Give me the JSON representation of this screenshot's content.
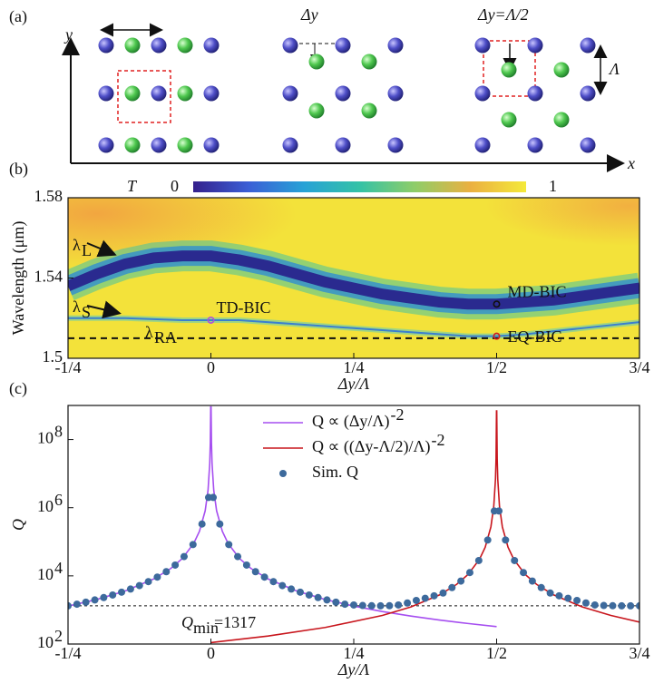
{
  "diagram": {
    "label": "(a)",
    "axis_y": "y",
    "axis_x": "x",
    "shift": "Δy",
    "shift_half": "Δy=Λ/2",
    "period": "Λ"
  },
  "chart_data": [
    {
      "type": "heatmap",
      "panel": "(b)",
      "xlabel": "Δy/Λ",
      "ylabel": "Wavelength (μm)",
      "xlim": [
        -0.25,
        0.75
      ],
      "xticks": [
        {
          "value": -0.25,
          "label": "-1/4"
        },
        0,
        {
          "value": 0.25,
          "label": "1/4"
        },
        {
          "value": 0.5,
          "label": "1/2"
        },
        {
          "value": 0.75,
          "label": "3/4"
        }
      ],
      "ylim": [
        1.5,
        1.58
      ],
      "yticks": [
        {
          "value": 1.5,
          "label": "1.5"
        },
        1.54,
        1.58
      ],
      "colorbar": {
        "label": "T",
        "range": [
          0,
          1
        ],
        "colors": [
          "#35208c",
          "#3b5fd6",
          "#27a2d6",
          "#34c2a6",
          "#8fcd68",
          "#ebb041",
          "#f4e93a"
        ]
      },
      "series": [
        {
          "annotation": "λ",
          "sub": "L",
          "color": "#2a2a8f",
          "x": [
            -0.25,
            -0.2,
            -0.15,
            -0.1,
            -0.05,
            0,
            0.05,
            0.1,
            0.15,
            0.2,
            0.25,
            0.3,
            0.35,
            0.4,
            0.45,
            0.5,
            0.55,
            0.6,
            0.65,
            0.7,
            0.75
          ],
          "values": [
            1.536,
            1.542,
            1.547,
            1.55,
            1.551,
            1.551,
            1.549,
            1.546,
            1.542,
            1.538,
            1.535,
            1.532,
            1.53,
            1.528,
            1.527,
            1.527,
            1.528,
            1.529,
            1.531,
            1.533,
            1.535
          ]
        },
        {
          "annotation": "λ",
          "sub": "S",
          "color": "#3a7fd0",
          "x": [
            -0.25,
            -0.15,
            -0.05,
            0,
            0.05,
            0.15,
            0.25,
            0.35,
            0.45,
            0.5,
            0.55,
            0.65,
            0.75
          ],
          "values": [
            1.52,
            1.52,
            1.519,
            1.519,
            1.519,
            1.517,
            1.515,
            1.513,
            1.511,
            1.511,
            1.512,
            1.515,
            1.518
          ]
        },
        {
          "annotation": "λ",
          "sub": "RA",
          "color": "#111111",
          "x": [
            -0.25,
            0.75
          ],
          "values": [
            1.51,
            1.51
          ]
        }
      ],
      "bics": [
        {
          "label": "TD-BIC",
          "color": "#b04fd8",
          "x": 0,
          "y": 1.519
        },
        {
          "label": "MD-BIC",
          "color": "#111111",
          "x": 0.5,
          "y": 1.527
        },
        {
          "label": "EQ-BIC",
          "color": "#d41c1c",
          "x": 0.5,
          "y": 1.511
        }
      ]
    },
    {
      "type": "line",
      "panel": "(c)",
      "xlabel": "Δy/Λ",
      "ylabel": "Q",
      "log_y": true,
      "xlim": [
        -0.25,
        0.75
      ],
      "xticks": [
        {
          "value": -0.25,
          "label": "-1/4"
        },
        0,
        {
          "value": 0.25,
          "label": "1/4"
        },
        {
          "value": 0.5,
          "label": "1/2"
        },
        {
          "value": 0.75,
          "label": "3/4"
        }
      ],
      "ylim": [
        100,
        1000000000
      ],
      "yticks": [
        {
          "value": 100,
          "label": "10",
          "exponent": "2"
        },
        {
          "value": 10000,
          "label": "10",
          "exponent": "4"
        },
        {
          "value": 1000000,
          "label": "10",
          "exponent": "6"
        },
        {
          "value": 100000000,
          "label": "10",
          "exponent": "8"
        }
      ],
      "reference": {
        "value": 1317,
        "label": "Q",
        "sub": "min",
        "suffix": "=1317"
      },
      "series": [
        {
          "name": "Q ∝ (Δy/Λ)",
          "name_sup": "-2",
          "color": "#a64ff0",
          "style": "line",
          "x": [
            -0.25,
            -0.2,
            -0.15,
            -0.1,
            -0.07,
            -0.05,
            -0.03,
            -0.02,
            -0.01,
            -0.005,
            -0.002,
            -0.001,
            -0.0003,
            0.0003,
            0.001,
            0.002,
            0.005,
            0.01,
            0.02,
            0.03,
            0.05,
            0.07,
            0.1,
            0.15,
            0.2,
            0.25,
            0.3,
            0.35,
            0.4,
            0.45,
            0.5
          ],
          "values": [
            1296,
            2025,
            3600,
            8100,
            16531,
            32400,
            90000,
            202500,
            810000,
            3240000,
            20250000,
            81000000,
            900000000,
            900000000,
            81000000,
            20250000,
            3240000,
            810000,
            202500,
            90000,
            32400,
            16531,
            8100,
            3600,
            2025,
            1296,
            900,
            661,
            506,
            400,
            324
          ]
        },
        {
          "name": "Q ∝ ((Δy-Λ/2)/Λ)",
          "name_sup": "-2",
          "color": "#c8161d",
          "style": "line",
          "x": [
            0,
            0.1,
            0.2,
            0.3,
            0.35,
            0.4,
            0.43,
            0.45,
            0.47,
            0.48,
            0.49,
            0.495,
            0.498,
            0.499,
            0.4998,
            0.5002,
            0.501,
            0.502,
            0.505,
            0.51,
            0.52,
            0.53,
            0.55,
            0.57,
            0.6,
            0.65,
            0.7,
            0.75
          ],
          "values": [
            110,
            172,
            306,
            688,
            1222,
            2750,
            5612,
            11000,
            30556,
            68750,
            275000,
            1100000,
            6875000,
            27500000,
            687500000,
            687500000,
            27500000,
            6875000,
            1100000,
            275000,
            68750,
            30556,
            11000,
            5612,
            2750,
            1222,
            688,
            440
          ]
        },
        {
          "name": "Sim. Q",
          "color": "#3d6a9c",
          "style": "points",
          "x": [
            -0.25,
            -0.2344,
            -0.2188,
            -0.2031,
            -0.1875,
            -0.1719,
            -0.1563,
            -0.1406,
            -0.125,
            -0.1094,
            -0.0938,
            -0.0781,
            -0.0625,
            -0.0469,
            -0.0313,
            -0.0156,
            -0.004,
            0.004,
            0.0156,
            0.0313,
            0.0469,
            0.0625,
            0.0781,
            0.0938,
            0.1094,
            0.125,
            0.1406,
            0.1563,
            0.1719,
            0.1875,
            0.2031,
            0.2188,
            0.2344,
            0.25,
            0.2656,
            0.2813,
            0.2969,
            0.3125,
            0.3281,
            0.3438,
            0.3594,
            0.375,
            0.3906,
            0.4063,
            0.4219,
            0.4375,
            0.4531,
            0.4688,
            0.4844,
            0.496,
            0.504,
            0.5156,
            0.5313,
            0.5469,
            0.5625,
            0.5781,
            0.5938,
            0.6094,
            0.625,
            0.6406,
            0.6563,
            0.6719,
            0.6875,
            0.7031,
            0.7188,
            0.7344,
            0.75
          ],
          "values": [
            1317,
            1475,
            1690,
            1965,
            2304,
            2740,
            3318,
            4096,
            5184,
            6771,
            9216,
            13271,
            20736,
            36864,
            82944,
            331776,
            2000000,
            2000000,
            331776,
            82944,
            36864,
            20736,
            13271,
            9216,
            6771,
            5184,
            4096,
            3318,
            2740,
            2304,
            1965,
            1690,
            1475,
            1400,
            1350,
            1330,
            1317,
            1330,
            1400,
            1600,
            1900,
            2200,
            2600,
            3130,
            4526,
            7040,
            12516,
            28160,
            112640,
            800000,
            800000,
            112640,
            28160,
            12516,
            7040,
            4526,
            3130,
            2600,
            2200,
            1900,
            1600,
            1400,
            1350,
            1330,
            1320,
            1317,
            1317
          ]
        }
      ]
    }
  ]
}
